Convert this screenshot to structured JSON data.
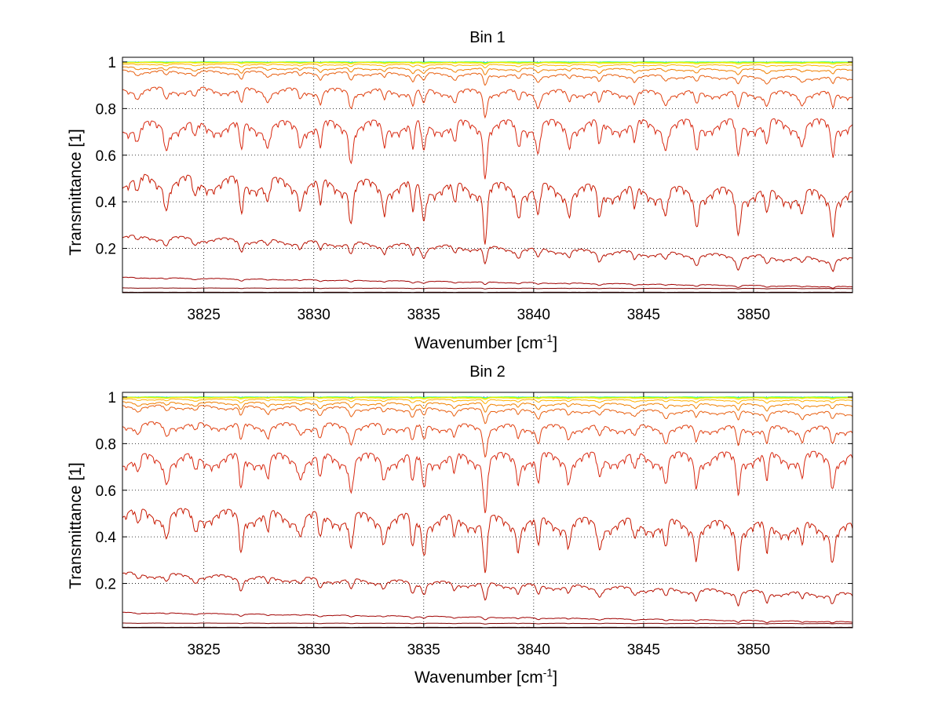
{
  "chart_data": [
    {
      "type": "line",
      "title": "Bin 1",
      "xlabel": "Wavenumber [cm",
      "xlabel_sup": "-1",
      "xlabel_suffix": "]",
      "ylabel": "Transmittance [1]",
      "xlim": [
        3821.3,
        3854.5
      ],
      "ylim": [
        0.01,
        1.02
      ],
      "grid": true,
      "x_ticks": [
        3825,
        3830,
        3835,
        3840,
        3845,
        3850
      ],
      "x_tick_labels": [
        "3825",
        "3830",
        "3835",
        "3840",
        "3845",
        "3850"
      ],
      "y_ticks": [
        0.2,
        0.4,
        0.6,
        0.8,
        1
      ],
      "y_tick_labels": [
        "0.2",
        "0.4",
        "0.6",
        "0.8",
        "1"
      ],
      "series": [
        {
          "color": "#00c0ff",
          "base": [
            1.0,
            1.0
          ],
          "depth": 0.004
        },
        {
          "color": "#40ff80",
          "base": [
            1.0,
            1.0
          ],
          "depth": 0.006
        },
        {
          "color": "#c0ff00",
          "base": [
            0.999,
            0.998
          ],
          "depth": 0.008
        },
        {
          "color": "#ffe000",
          "base": [
            0.997,
            0.995
          ],
          "depth": 0.012
        },
        {
          "color": "#ffb000",
          "base": [
            0.99,
            0.985
          ],
          "depth": 0.025
        },
        {
          "color": "#f08000",
          "base": [
            0.975,
            0.965
          ],
          "depth": 0.05
        },
        {
          "color": "#e86010",
          "base": [
            0.96,
            0.93
          ],
          "depth": 0.08
        },
        {
          "color": "#e04010",
          "base": [
            0.88,
            0.86
          ],
          "depth": 0.17
        },
        {
          "color": "#d82810",
          "base": [
            0.72,
            0.73
          ],
          "depth": 0.34
        },
        {
          "color": "#c81800",
          "base": [
            0.49,
            0.42
          ],
          "depth": 0.38
        },
        {
          "color": "#b81000",
          "base": [
            0.25,
            0.15
          ],
          "depth": 0.12
        },
        {
          "color": "#a00000",
          "base": [
            0.075,
            0.035
          ],
          "depth": 0.02
        },
        {
          "color": "#800000",
          "base": [
            0.03,
            0.028
          ],
          "depth": 0.005
        },
        {
          "color": "#500000",
          "base": [
            0.012,
            0.012
          ],
          "depth": 0.002
        }
      ]
    },
    {
      "type": "line",
      "title": "Bin 2",
      "xlabel": "Wavenumber [cm",
      "xlabel_sup": "-1",
      "xlabel_suffix": "]",
      "ylabel": "Transmittance [1]",
      "xlim": [
        3821.3,
        3854.5
      ],
      "ylim": [
        0.01,
        1.02
      ],
      "grid": true,
      "x_ticks": [
        3825,
        3830,
        3835,
        3840,
        3845,
        3850
      ],
      "x_tick_labels": [
        "3825",
        "3830",
        "3835",
        "3840",
        "3845",
        "3850"
      ],
      "y_ticks": [
        0.2,
        0.4,
        0.6,
        0.8,
        1
      ],
      "y_tick_labels": [
        "0.2",
        "0.4",
        "0.6",
        "0.8",
        "1"
      ],
      "series": [
        {
          "color": "#00c0ff",
          "base": [
            1.0,
            1.0
          ],
          "depth": 0.004
        },
        {
          "color": "#40ff80",
          "base": [
            1.0,
            1.0
          ],
          "depth": 0.006
        },
        {
          "color": "#c0ff00",
          "base": [
            0.999,
            0.998
          ],
          "depth": 0.008
        },
        {
          "color": "#ffe000",
          "base": [
            0.997,
            0.995
          ],
          "depth": 0.012
        },
        {
          "color": "#ffb000",
          "base": [
            0.99,
            0.985
          ],
          "depth": 0.03
        },
        {
          "color": "#f08000",
          "base": [
            0.975,
            0.965
          ],
          "depth": 0.06
        },
        {
          "color": "#e86010",
          "base": [
            0.96,
            0.93
          ],
          "depth": 0.09
        },
        {
          "color": "#e04010",
          "base": [
            0.88,
            0.86
          ],
          "depth": 0.18
        },
        {
          "color": "#d82810",
          "base": [
            0.73,
            0.74
          ],
          "depth": 0.34
        },
        {
          "color": "#c81800",
          "base": [
            0.5,
            0.43
          ],
          "depth": 0.36
        },
        {
          "color": "#b81000",
          "base": [
            0.24,
            0.15
          ],
          "depth": 0.12
        },
        {
          "color": "#a00000",
          "base": [
            0.075,
            0.035
          ],
          "depth": 0.02
        },
        {
          "color": "#800000",
          "base": [
            0.03,
            0.028
          ],
          "depth": 0.005
        },
        {
          "color": "#500000",
          "base": [
            0.012,
            0.012
          ],
          "depth": 0.002
        }
      ]
    }
  ]
}
